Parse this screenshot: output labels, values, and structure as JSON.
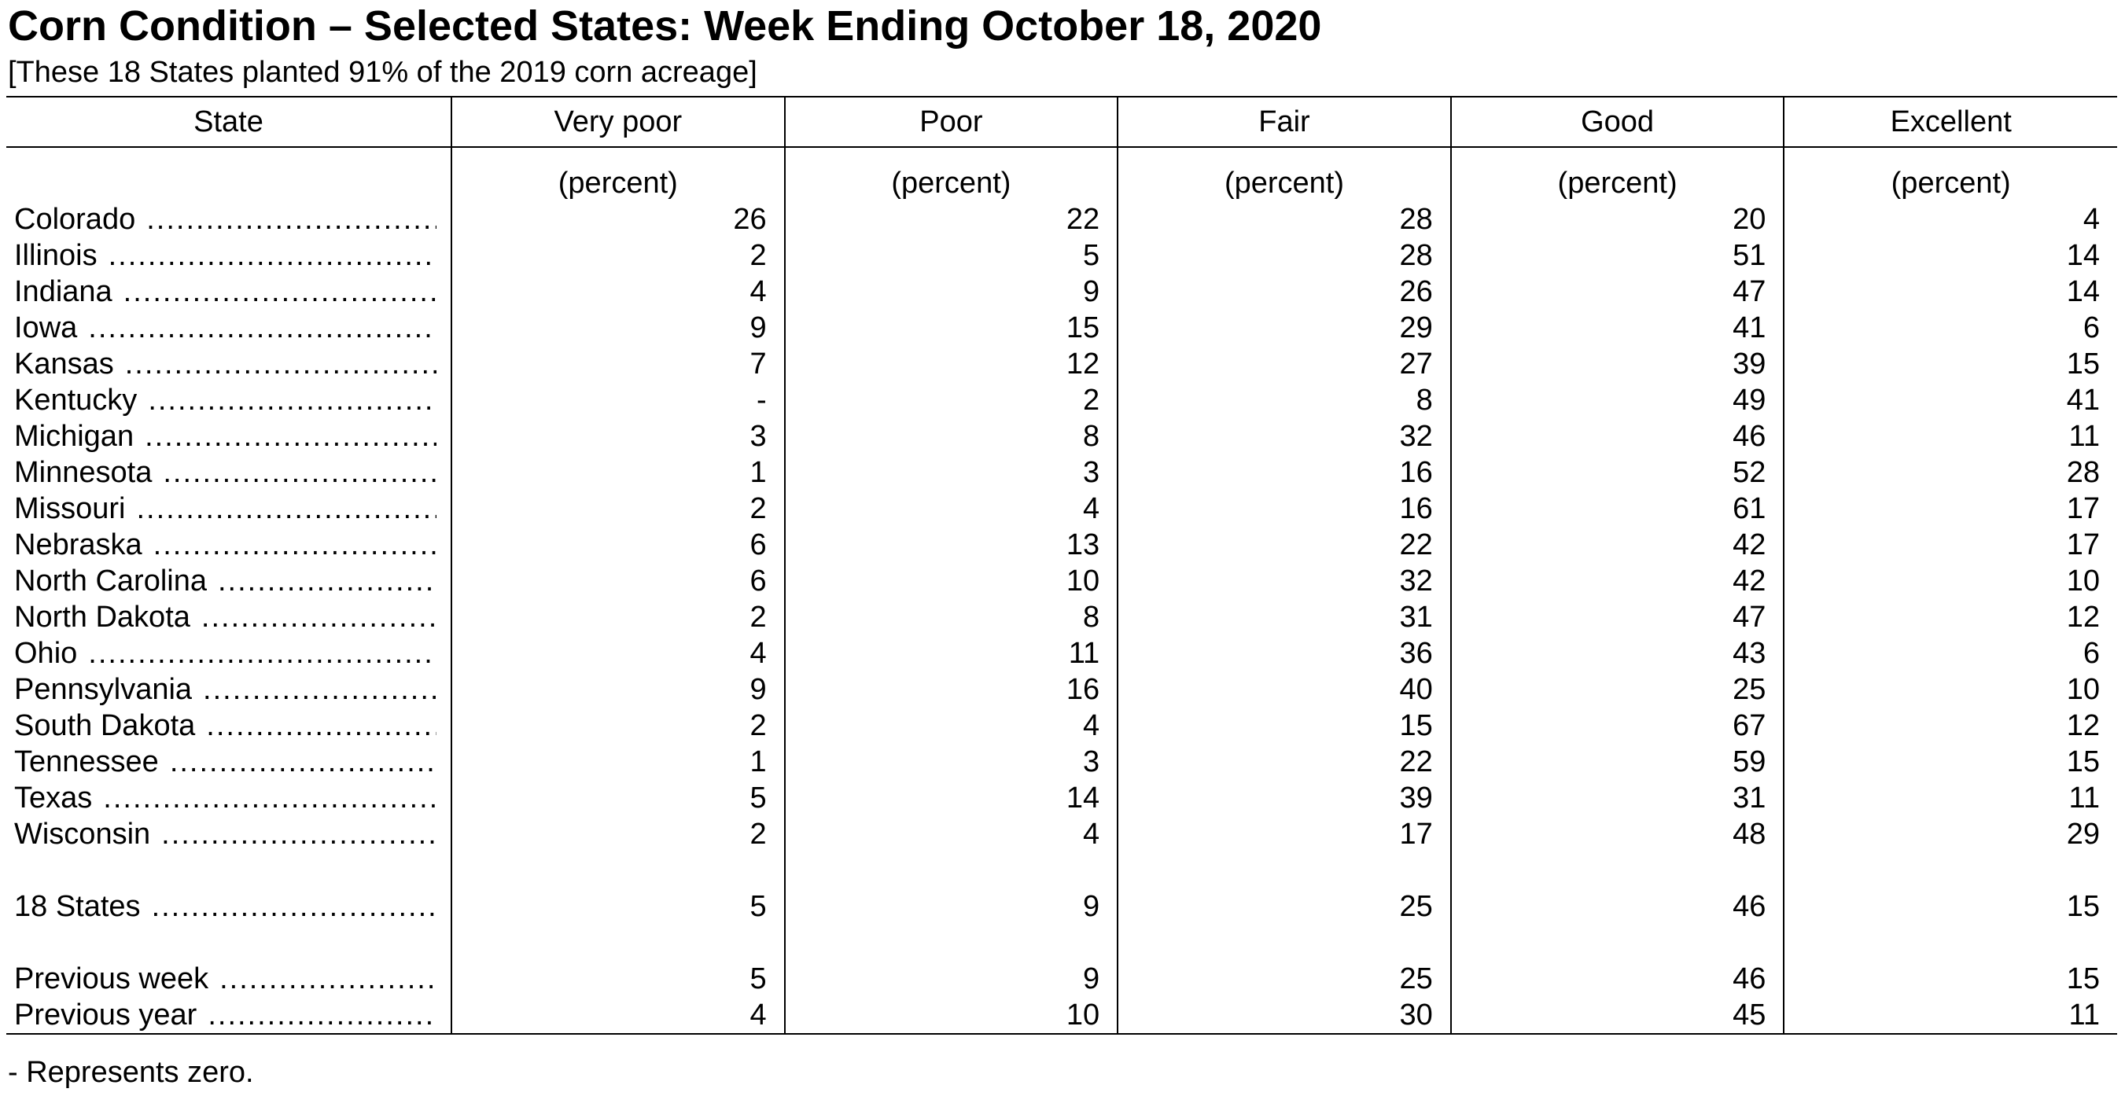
{
  "header": {
    "title": "Corn Condition – Selected States: Week Ending October 18, 2020",
    "subtitle": "[These 18 States planted 91% of the 2019 corn acreage]"
  },
  "table": {
    "columns": [
      "State",
      "Very poor",
      "Poor",
      "Fair",
      "Good",
      "Excellent"
    ],
    "units": [
      "",
      "(percent)",
      "(percent)",
      "(percent)",
      "(percent)",
      "(percent)"
    ],
    "rows": [
      {
        "state": "Colorado",
        "values": [
          "26",
          "22",
          "28",
          "20",
          "4"
        ]
      },
      {
        "state": "Illinois",
        "values": [
          "2",
          "5",
          "28",
          "51",
          "14"
        ]
      },
      {
        "state": "Indiana",
        "values": [
          "4",
          "9",
          "26",
          "47",
          "14"
        ]
      },
      {
        "state": "Iowa",
        "values": [
          "9",
          "15",
          "29",
          "41",
          "6"
        ]
      },
      {
        "state": "Kansas",
        "values": [
          "7",
          "12",
          "27",
          "39",
          "15"
        ]
      },
      {
        "state": "Kentucky",
        "values": [
          "-",
          "2",
          "8",
          "49",
          "41"
        ]
      },
      {
        "state": "Michigan",
        "values": [
          "3",
          "8",
          "32",
          "46",
          "11"
        ]
      },
      {
        "state": "Minnesota",
        "values": [
          "1",
          "3",
          "16",
          "52",
          "28"
        ]
      },
      {
        "state": "Missouri",
        "values": [
          "2",
          "4",
          "16",
          "61",
          "17"
        ]
      },
      {
        "state": "Nebraska",
        "values": [
          "6",
          "13",
          "22",
          "42",
          "17"
        ]
      },
      {
        "state": "North Carolina",
        "values": [
          "6",
          "10",
          "32",
          "42",
          "10"
        ]
      },
      {
        "state": "North Dakota",
        "values": [
          "2",
          "8",
          "31",
          "47",
          "12"
        ]
      },
      {
        "state": "Ohio",
        "values": [
          "4",
          "11",
          "36",
          "43",
          "6"
        ]
      },
      {
        "state": "Pennsylvania",
        "values": [
          "9",
          "16",
          "40",
          "25",
          "10"
        ]
      },
      {
        "state": "South Dakota",
        "values": [
          "2",
          "4",
          "15",
          "67",
          "12"
        ]
      },
      {
        "state": "Tennessee",
        "values": [
          "1",
          "3",
          "22",
          "59",
          "15"
        ]
      },
      {
        "state": "Texas",
        "values": [
          "5",
          "14",
          "39",
          "31",
          "11"
        ]
      },
      {
        "state": "Wisconsin",
        "values": [
          "2",
          "4",
          "17",
          "48",
          "29"
        ]
      }
    ],
    "total": {
      "state": "18 States",
      "values": [
        "5",
        "9",
        "25",
        "46",
        "15"
      ]
    },
    "previous_week": {
      "state": "Previous week",
      "values": [
        "5",
        "9",
        "25",
        "46",
        "15"
      ]
    },
    "previous_year": {
      "state": "Previous year",
      "values": [
        "4",
        "10",
        "30",
        "45",
        "11"
      ]
    }
  },
  "footnote": "- Represents zero."
}
